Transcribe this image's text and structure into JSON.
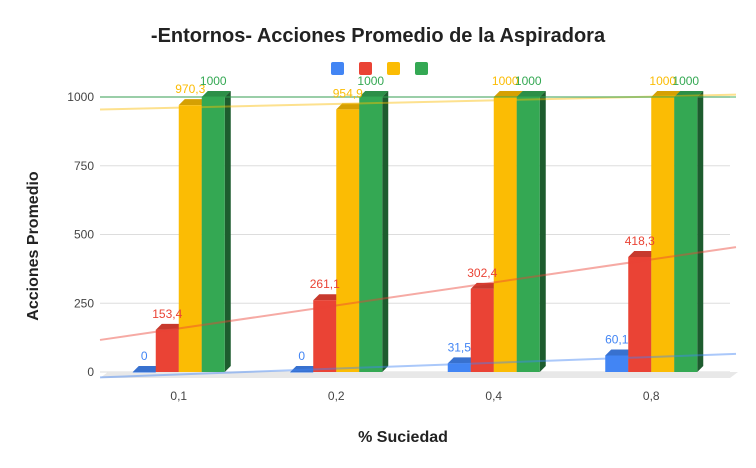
{
  "chart_data": {
    "type": "bar",
    "title": "-Entornos- Acciones Promedio de la Aspiradora",
    "xlabel": "% Suciedad",
    "ylabel": "Acciones Promedio",
    "categories": [
      "0,1",
      "0,2",
      "0,4",
      "0,8"
    ],
    "yticks": [
      "0",
      "250",
      "500",
      "750",
      "1000"
    ],
    "ylim": [
      0,
      1000
    ],
    "grid": true,
    "legend": "top",
    "three_d": true,
    "trendlines": true,
    "series": [
      {
        "color": "#4285f4",
        "values": [
          0,
          0,
          31.5,
          60.1
        ],
        "labels": [
          "0",
          "0",
          "31,5",
          "60,1"
        ]
      },
      {
        "color": "#ea4335",
        "values": [
          153.4,
          261.1,
          302.4,
          418.3
        ],
        "labels": [
          "153,4",
          "261,1",
          "302,4",
          "418,3"
        ]
      },
      {
        "color": "#fbbc04",
        "values": [
          970.3,
          954.9,
          1000,
          1000
        ],
        "labels": [
          "970,3",
          "954,9",
          "1000",
          "1000"
        ]
      },
      {
        "color": "#34a853",
        "values": [
          1000,
          1000,
          1000,
          1000
        ],
        "labels": [
          "1000",
          "1000",
          "1000",
          "1000"
        ]
      }
    ]
  }
}
